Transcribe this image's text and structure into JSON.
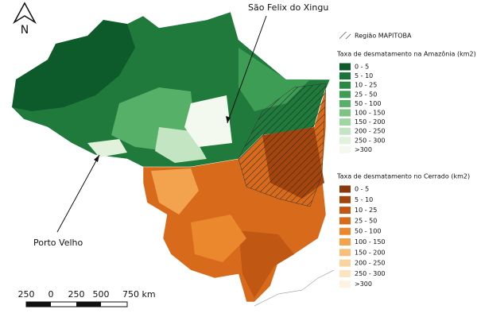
{
  "north_arrow": "N",
  "annotations": [
    {
      "label": "São Felix do Xingu"
    },
    {
      "label": "Porto Velho"
    }
  ],
  "legend": {
    "hatch_label": "Região MAPITOBA",
    "groups": [
      {
        "title": "Taxa de desmatamento na Amazônia (km2)",
        "classes": [
          {
            "label": "0 - 5",
            "color": "#0d5a2a"
          },
          {
            "label": "5 - 10",
            "color": "#1a7438"
          },
          {
            "label": "10 - 25",
            "color": "#2a8a44"
          },
          {
            "label": "25 - 50",
            "color": "#3e9d55"
          },
          {
            "label": "50 - 100",
            "color": "#57b067"
          },
          {
            "label": "100 - 150",
            "color": "#7cc384"
          },
          {
            "label": "150 - 200",
            "color": "#a1d5a4"
          },
          {
            "label": "200 - 250",
            "color": "#c4e5c2"
          },
          {
            "label": "250 - 300",
            "color": "#e1f1dc"
          },
          {
            "label": ">300",
            "color": "#f3f9ee"
          }
        ]
      },
      {
        "title": "Taxa de desmatamento no Cerrado (km2)",
        "classes": [
          {
            "label": "0 - 5",
            "color": "#8a390b"
          },
          {
            "label": "5 - 10",
            "color": "#a4450d"
          },
          {
            "label": "10 - 25",
            "color": "#c05712"
          },
          {
            "label": "25 - 50",
            "color": "#d86b1b"
          },
          {
            "label": "50 - 100",
            "color": "#eb872c"
          },
          {
            "label": "100 - 150",
            "color": "#f3a24e"
          },
          {
            "label": "150 - 200",
            "color": "#f7bf7a"
          },
          {
            "label": "200 - 250",
            "color": "#f9d49f"
          },
          {
            "label": "250 - 300",
            "color": "#fbe5c1"
          },
          {
            "label": ">300",
            "color": "#fdf3de"
          }
        ]
      }
    ]
  },
  "scale_bar": {
    "labels": [
      "250",
      "0",
      "250",
      "500",
      "750 km"
    ]
  }
}
